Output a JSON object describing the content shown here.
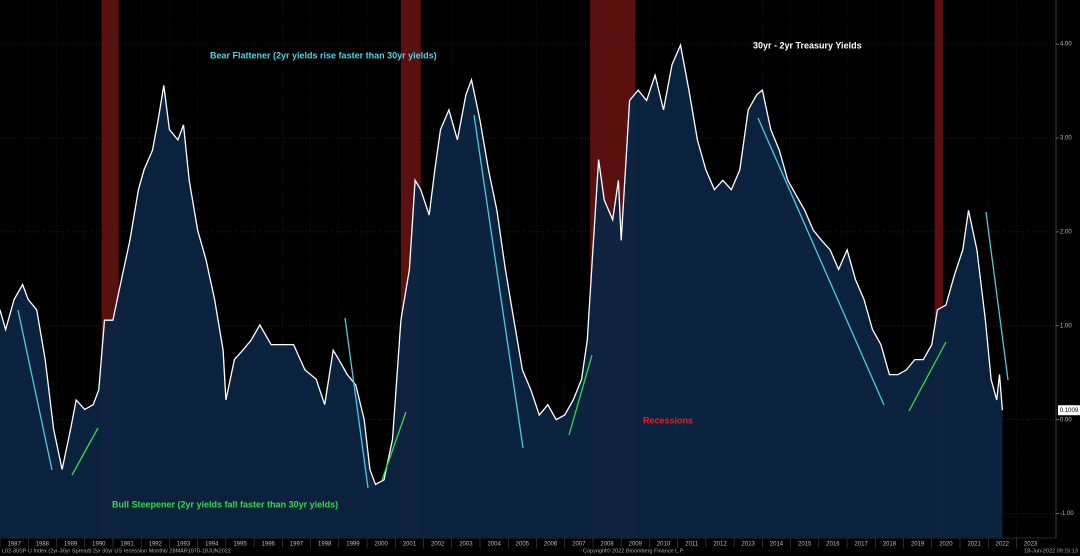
{
  "chart_data": {
    "type": "area",
    "title": "30yr - 2yr Treasury Yields",
    "annotations": {
      "bear": "Bear Flattener (2yr yields rise faster than 30yr yields)",
      "bull": "Bull Steepener (2yr yields fall faster than 30yr yields)",
      "recessions": "Recessions"
    },
    "footer": {
      "left": "L02-30SP U Index (2yr-30yr Spread) 2yr 30yr US recession  Monthly 28MAR1970-18JUN2022",
      "center": "Copyright© 2022 Bloomberg Finance L.P.",
      "right": "18-Jun-2022 09:15:13"
    },
    "series": [
      {
        "name": "30yr - 2yr Treasury Yields",
        "color": "#ffffff",
        "fill": "#0c2442",
        "x": [
          1987.0,
          1987.2,
          1987.5,
          1987.8,
          1988.0,
          1988.3,
          1988.6,
          1988.9,
          1989.2,
          1989.5,
          1989.7,
          1990.0,
          1990.3,
          1990.5,
          1990.7,
          1991.0,
          1991.3,
          1991.6,
          1991.9,
          1992.1,
          1992.4,
          1992.6,
          1992.8,
          1993.0,
          1993.3,
          1993.5,
          1993.7,
          1994.0,
          1994.3,
          1994.6,
          1994.9,
          1995.0,
          1995.3,
          1995.6,
          1995.9,
          1996.2,
          1996.6,
          1997.0,
          1997.4,
          1997.8,
          1998.2,
          1998.5,
          1998.8,
          1999.0,
          1999.3,
          1999.6,
          1999.9,
          2000.1,
          2000.3,
          2000.6,
          2000.9,
          2001.0,
          2001.2,
          2001.5,
          2001.7,
          2001.9,
          2002.2,
          2002.4,
          2002.6,
          2002.9,
          2003.2,
          2003.5,
          2003.7,
          2004.0,
          2004.3,
          2004.6,
          2004.9,
          2005.2,
          2005.5,
          2005.8,
          2006.1,
          2006.4,
          2006.7,
          2007.0,
          2007.3,
          2007.6,
          2007.8,
          2008.0,
          2008.2,
          2008.4,
          2008.7,
          2008.9,
          2009.0,
          2009.3,
          2009.6,
          2009.9,
          2010.2,
          2010.5,
          2010.8,
          2011.1,
          2011.4,
          2011.7,
          2012.0,
          2012.3,
          2012.6,
          2012.9,
          2013.2,
          2013.5,
          2013.8,
          2014.0,
          2014.3,
          2014.6,
          2014.9,
          2015.2,
          2015.5,
          2015.8,
          2016.1,
          2016.4,
          2016.7,
          2017.0,
          2017.3,
          2017.6,
          2017.9,
          2018.2,
          2018.5,
          2018.8,
          2019.1,
          2019.4,
          2019.7,
          2020.0,
          2020.2,
          2020.5,
          2020.8,
          2021.1,
          2021.3,
          2021.6,
          2021.9,
          2022.1,
          2022.3,
          2022.4,
          2022.5
        ],
        "values": [
          1.17,
          0.96,
          1.28,
          1.44,
          1.28,
          1.17,
          0.64,
          -0.1,
          -0.53,
          -0.1,
          0.21,
          0.11,
          0.16,
          0.32,
          1.06,
          1.06,
          1.49,
          1.91,
          2.45,
          2.66,
          2.87,
          3.19,
          3.56,
          3.09,
          2.98,
          3.14,
          2.55,
          2.02,
          1.7,
          1.28,
          0.74,
          0.21,
          0.64,
          0.74,
          0.85,
          1.01,
          0.8,
          0.8,
          0.8,
          0.53,
          0.43,
          0.16,
          0.74,
          0.64,
          0.48,
          0.37,
          0,
          -0.53,
          -0.69,
          -0.64,
          -0.21,
          0.21,
          1.06,
          1.6,
          2.55,
          2.45,
          2.18,
          2.66,
          3.09,
          3.3,
          2.98,
          3.46,
          3.62,
          3.19,
          2.66,
          2.23,
          1.6,
          1.06,
          0.53,
          0.32,
          0.05,
          0.16,
          0,
          0.05,
          0.21,
          0.43,
          0.85,
          1.81,
          2.77,
          2.34,
          2.13,
          2.55,
          1.91,
          3.4,
          3.51,
          3.4,
          3.67,
          3.3,
          3.78,
          3.99,
          3.51,
          2.98,
          2.66,
          2.45,
          2.55,
          2.45,
          2.66,
          3.3,
          3.46,
          3.51,
          3.09,
          2.87,
          2.55,
          2.39,
          2.23,
          2.02,
          1.91,
          1.81,
          1.6,
          1.81,
          1.49,
          1.28,
          0.96,
          0.8,
          0.48,
          0.48,
          0.53,
          0.64,
          0.64,
          0.8,
          1.17,
          1.22,
          1.54,
          1.81,
          2.23,
          1.81,
          1.06,
          0.43,
          0.21,
          0.48,
          0.1009
        ]
      }
    ],
    "recessions": [
      [
        1990.6,
        1991.2
      ],
      [
        2001.2,
        2001.9
      ],
      [
        2007.9,
        2009.5
      ],
      [
        2020.1,
        2020.4
      ]
    ],
    "recession_color": "#7a1515",
    "xlim": [
      1987,
      2024.4
    ],
    "xticks": [
      1987,
      1988,
      1989,
      1990,
      1991,
      1992,
      1993,
      1994,
      1995,
      1996,
      1997,
      1998,
      1999,
      2000,
      2001,
      2002,
      2003,
      2004,
      2005,
      2006,
      2007,
      2008,
      2009,
      2010,
      2011,
      2012,
      2013,
      2014,
      2015,
      2016,
      2017,
      2018,
      2019,
      2020,
      2021,
      2022,
      2023
    ],
    "ylim": [
      -1.26,
      4.47
    ],
    "yticks": [
      {
        "value": 4,
        "label": "4.00"
      },
      {
        "value": 3,
        "label": "3.00"
      },
      {
        "value": 2,
        "label": "2.00"
      },
      {
        "value": 1,
        "label": "1.00"
      },
      {
        "value": 0,
        "label": "0.00"
      },
      {
        "value": -1,
        "label": "-1.00"
      }
    ],
    "grid": true
  }
}
